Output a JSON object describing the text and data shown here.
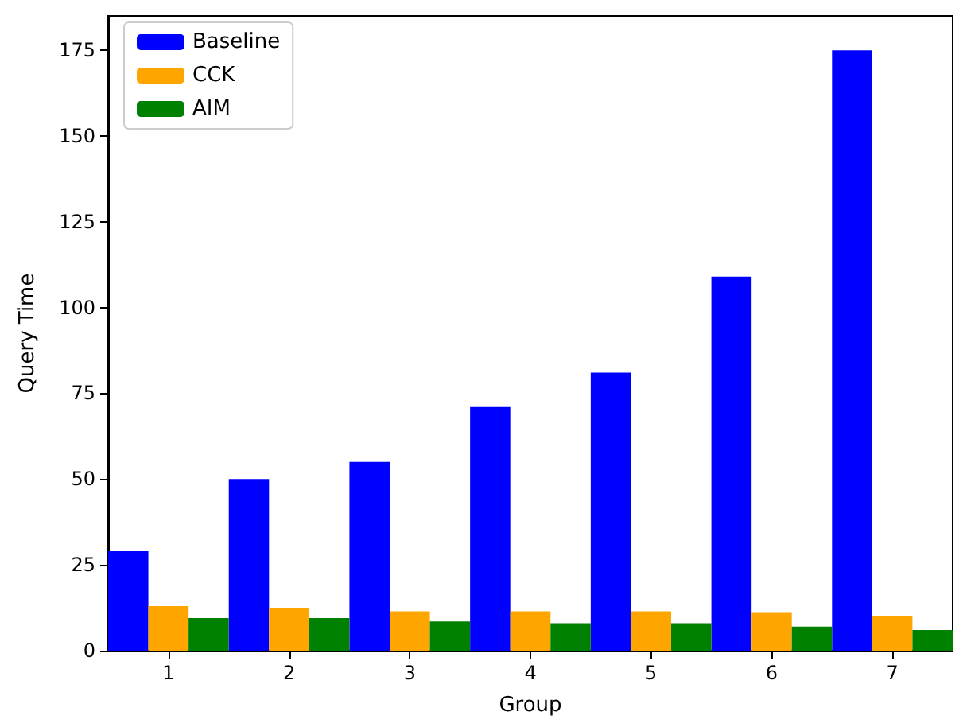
{
  "chart_data": {
    "type": "bar",
    "xlabel": "Group",
    "ylabel": "Query Time",
    "categories": [
      "1",
      "2",
      "3",
      "4",
      "5",
      "6",
      "7"
    ],
    "series": [
      {
        "name": "Baseline",
        "color": "#0000ff",
        "values": [
          29,
          50,
          55,
          71,
          81,
          109,
          175
        ]
      },
      {
        "name": "CCK",
        "color": "#ffa500",
        "values": [
          13,
          12.5,
          11.5,
          11.5,
          11.5,
          11,
          10
        ]
      },
      {
        "name": "AIM",
        "color": "#008000",
        "values": [
          9.5,
          9.5,
          8.5,
          8,
          8,
          7,
          6
        ]
      }
    ],
    "ylim": [
      0,
      185
    ],
    "yticks": [
      0,
      25,
      50,
      75,
      100,
      125,
      150,
      175
    ],
    "grid": false,
    "legend": "top left"
  }
}
